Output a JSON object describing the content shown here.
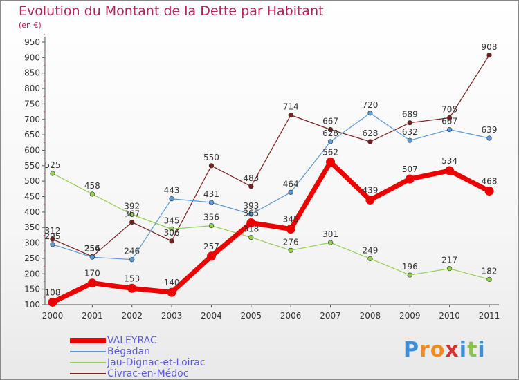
{
  "chart_data": {
    "type": "line",
    "title": "Evolution du Montant de la Dette par Habitant",
    "subtitle": "(en €)",
    "xlabel": "",
    "ylabel": "",
    "categories": [
      "2000",
      "2001",
      "2002",
      "2003",
      "2004",
      "2005",
      "2006",
      "2007",
      "2008",
      "2009",
      "2010",
      "2011"
    ],
    "ylim": [
      100,
      950
    ],
    "yticks": [
      100,
      150,
      200,
      250,
      300,
      350,
      400,
      450,
      500,
      550,
      600,
      650,
      700,
      750,
      800,
      850,
      900,
      950
    ],
    "grid": "off",
    "legend_position": "bottom-left",
    "series": [
      {
        "name": "VALEYRAC",
        "color": "#ee0000",
        "values": [
          108,
          170,
          153,
          140,
          257,
          365,
          345,
          562,
          439,
          507,
          534,
          468
        ]
      },
      {
        "name": "Bégadan",
        "color": "#5b9bd5",
        "values": [
          295,
          254,
          246,
          443,
          431,
          393,
          464,
          628,
          720,
          632,
          667,
          639
        ]
      },
      {
        "name": "Jau-Dignac-et-Loirac",
        "color": "#92d050",
        "values": [
          525,
          458,
          392,
          345,
          356,
          318,
          276,
          301,
          249,
          196,
          217,
          182
        ]
      },
      {
        "name": "Civrac-en-Médoc",
        "color": "#7b1e1e",
        "values": [
          312,
          256,
          367,
          306,
          550,
          483,
          714,
          667,
          628,
          689,
          705,
          908
        ]
      }
    ]
  },
  "logo": {
    "letters": [
      "P",
      "r",
      "o",
      "x",
      "i",
      "t",
      "i"
    ],
    "colors": [
      "#3a8fd8",
      "#f28c1e",
      "#f28c1e",
      "#d62f2f",
      "#3a8fd8",
      "#8bc34a",
      "#3a8fd8"
    ]
  }
}
